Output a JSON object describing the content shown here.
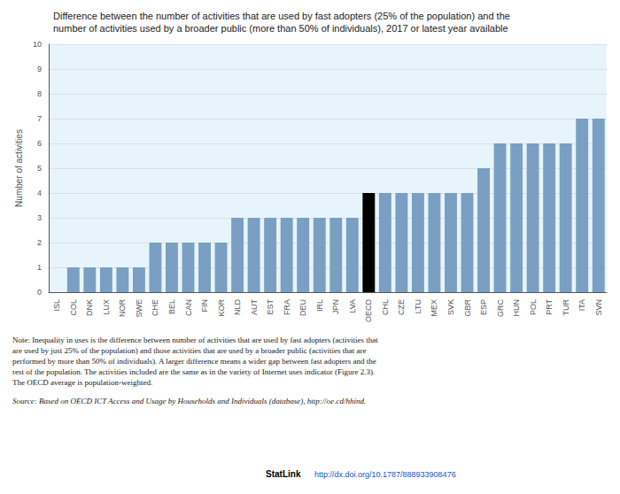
{
  "chart_data": {
    "type": "bar",
    "title": "Difference between the number of activities that are used by fast adopters (25% of the population) and the\nnumber of activities used by a broader public (more than 50% of individuals), 2017 or latest year available",
    "ylabel": "Number of activities",
    "categories": [
      "ISL",
      "COL",
      "DNK",
      "LUX",
      "NOR",
      "SWE",
      "CHE",
      "BEL",
      "CAN",
      "FIN",
      "KOR",
      "NLD",
      "AUT",
      "EST",
      "FRA",
      "DEU",
      "IRL",
      "JPN",
      "LVA",
      "OECD",
      "CHL",
      "CZE",
      "LTU",
      "MEX",
      "SVK",
      "GBR",
      "ESP",
      "GRC",
      "HUN",
      "POL",
      "PRT",
      "TUR",
      "ITA",
      "SVN"
    ],
    "values": [
      0,
      1,
      1,
      1,
      1,
      1,
      2,
      2,
      2,
      2,
      2,
      3,
      3,
      3,
      3,
      3,
      3,
      3,
      3,
      4,
      4,
      4,
      4,
      4,
      4,
      4,
      5,
      6,
      6,
      6,
      6,
      6,
      7,
      7
    ],
    "colors": [
      "#7a9fc2",
      "#7a9fc2",
      "#7a9fc2",
      "#7a9fc2",
      "#7a9fc2",
      "#7a9fc2",
      "#7a9fc2",
      "#7a9fc2",
      "#7a9fc2",
      "#7a9fc2",
      "#7a9fc2",
      "#7a9fc2",
      "#7a9fc2",
      "#7a9fc2",
      "#7a9fc2",
      "#7a9fc2",
      "#7a9fc2",
      "#7a9fc2",
      "#7a9fc2",
      "#000000",
      "#7a9fc2",
      "#7a9fc2",
      "#7a9fc2",
      "#7a9fc2",
      "#7a9fc2",
      "#7a9fc2",
      "#7a9fc2",
      "#7a9fc2",
      "#7a9fc2",
      "#7a9fc2",
      "#7a9fc2",
      "#7a9fc2",
      "#7a9fc2",
      "#7a9fc2"
    ],
    "ylim": [
      0,
      10
    ],
    "yticks": [
      0,
      1,
      2,
      3,
      4,
      5,
      6,
      7,
      8,
      9,
      10
    ],
    "grid": true,
    "annotations": [
      "Note: Inequality in uses is the difference between number of activities that are used by fast adopters (activities that\nare used by just 25% of the population) and those activities that are used by a broader public (activities that are\nperformed by more than 50% of individuals). A larger difference means a wider gap between fast adopters and the\nrest of the population. The activities included are the same as in the variety of Internet uses indicator (Figure 2.3).\nThe OECD average is population-weighted.",
      "Source: Based on OECD ICT Access and Usage by Households and Individuals (database), http://oe.cd/hhind.",
      "StatLink",
      "http://dx.doi.org/10.1787/888933908476"
    ]
  }
}
